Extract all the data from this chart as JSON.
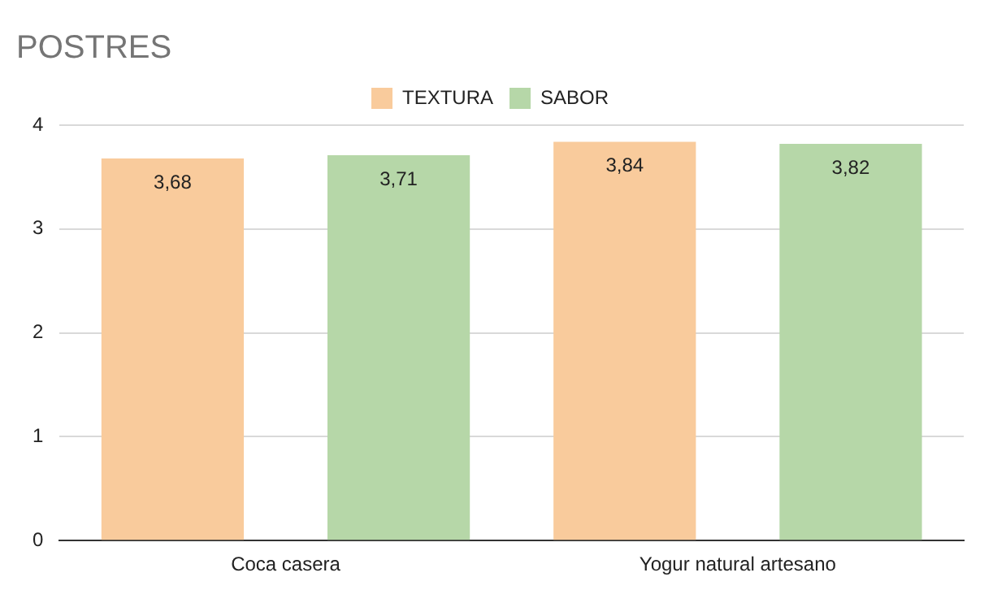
{
  "chart_data": {
    "type": "bar",
    "title": "POSTRES",
    "categories": [
      "Coca casera",
      "Yogur natural artesano"
    ],
    "series": [
      {
        "name": "TEXTURA",
        "color": "#f9cb9c",
        "values": [
          3.68,
          3.84
        ],
        "value_labels": [
          "3,68",
          "3,84"
        ]
      },
      {
        "name": "SABOR",
        "color": "#b6d7a8",
        "values": [
          3.71,
          3.82
        ],
        "value_labels": [
          "3,71",
          "3,82"
        ]
      }
    ],
    "ylim": [
      0,
      4
    ],
    "yticks": [
      0,
      1,
      2,
      3,
      4
    ],
    "grid": "y",
    "legend": "top"
  }
}
